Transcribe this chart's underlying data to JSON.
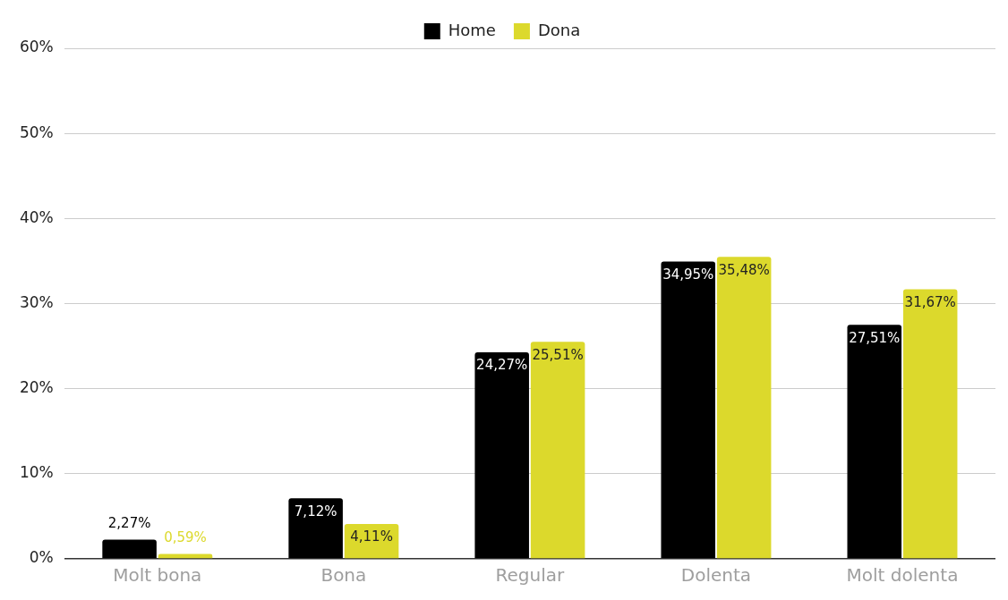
{
  "chart_data": {
    "type": "bar",
    "categories": [
      "Molt bona",
      "Bona",
      "Regular",
      "Dolenta",
      "Molt dolenta"
    ],
    "series": [
      {
        "name": "Home",
        "color": "#000000",
        "values": [
          2.27,
          7.12,
          24.27,
          34.95,
          27.51
        ],
        "value_labels": [
          "2,27%",
          "7,12%",
          "24,27%",
          "34,95%",
          "27,51%"
        ]
      },
      {
        "name": "Dona",
        "color": "#dcd92c",
        "values": [
          0.59,
          4.11,
          25.51,
          35.48,
          31.67
        ],
        "value_labels": [
          "0,59%",
          "4,11%",
          "25,51%",
          "35,48%",
          "31,67%"
        ]
      }
    ],
    "ylim": [
      0,
      60
    ],
    "yticks": [
      {
        "value": 0,
        "label": "0%"
      },
      {
        "value": 10,
        "label": "10%"
      },
      {
        "value": 20,
        "label": "20%"
      },
      {
        "value": 30,
        "label": "30%"
      },
      {
        "value": 40,
        "label": "40%"
      },
      {
        "value": 50,
        "label": "50%"
      },
      {
        "value": 60,
        "label": "60%"
      }
    ],
    "grid": "y",
    "legend": "top"
  }
}
